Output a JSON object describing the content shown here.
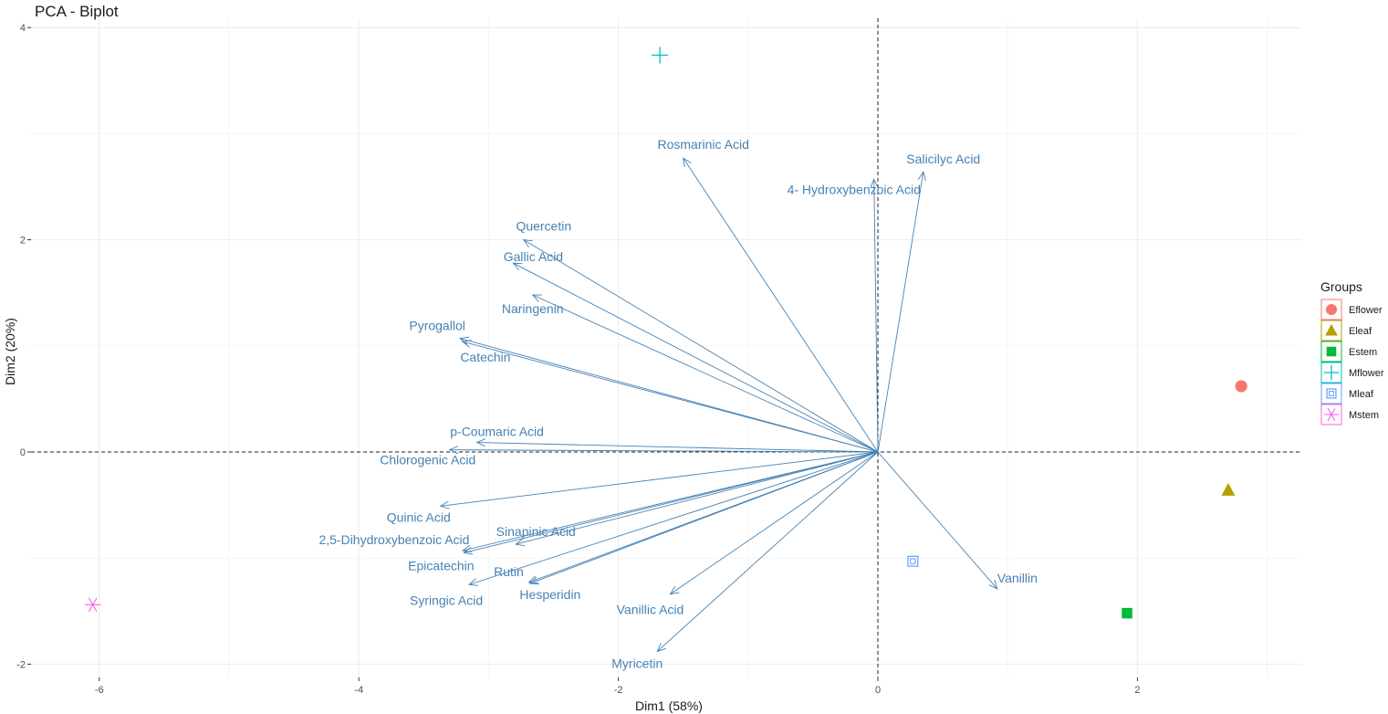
{
  "chart_data": {
    "type": "scatter",
    "subtype": "pca-biplot",
    "title": "PCA - Biplot",
    "xlabel": "Dim1 (58%)",
    "ylabel": "Dim2 (20%)",
    "xlim": [
      -6.6,
      3.25
    ],
    "ylim": [
      -2.2,
      4.1
    ],
    "x_ticks": [
      -6,
      -4,
      -2,
      0,
      2
    ],
    "y_ticks": [
      -2,
      0,
      2,
      4
    ],
    "grid": true,
    "reference_lines": {
      "x": 0,
      "y": 0,
      "style": "dashed"
    },
    "legend": {
      "title": "Groups",
      "position": "right"
    },
    "groups": [
      {
        "name": "Eflower",
        "shape": "circle",
        "color": "#F8766D",
        "x": 2.8,
        "y": 0.62
      },
      {
        "name": "Eleaf",
        "shape": "triangle",
        "color": "#B79F00",
        "x": 2.7,
        "y": -0.36
      },
      {
        "name": "Estem",
        "shape": "square",
        "color": "#00BA38",
        "x": 1.92,
        "y": -1.52
      },
      {
        "name": "Mflower",
        "shape": "cross",
        "color": "#00BFC4",
        "x": -1.68,
        "y": 3.74
      },
      {
        "name": "Mleaf",
        "shape": "boxed-square",
        "color": "#619CFF",
        "x": 0.27,
        "y": -1.03
      },
      {
        "name": "Mstem",
        "shape": "asterisk",
        "color": "#F564E3",
        "x": -6.05,
        "y": -1.44
      }
    ],
    "variables": [
      {
        "name": "Rosmarinic Acid",
        "x": -1.5,
        "y": 2.77
      },
      {
        "name": "4- Hydroxybenzoic Acid",
        "x": -0.03,
        "y": 2.57
      },
      {
        "name": "Salicilyc Acid",
        "x": 0.35,
        "y": 2.64
      },
      {
        "name": "Quercetin",
        "x": -2.73,
        "y": 2.0
      },
      {
        "name": "Gallic Acid",
        "x": -2.81,
        "y": 1.78
      },
      {
        "name": "Naringenin",
        "x": -2.66,
        "y": 1.48
      },
      {
        "name": "Pyrogallol",
        "x": -3.22,
        "y": 1.07
      },
      {
        "name": "Catechin",
        "x": -3.2,
        "y": 1.04
      },
      {
        "name": "p-Coumaric Acid",
        "x": -3.09,
        "y": 0.09
      },
      {
        "name": "Chlorogenic Acid",
        "x": -3.3,
        "y": 0.02
      },
      {
        "name": "Quinic Acid",
        "x": -3.37,
        "y": -0.51
      },
      {
        "name": "2,5-Dihydroxybenzoic Acid",
        "x": -3.2,
        "y": -0.93
      },
      {
        "name": "Sinapinic Acid",
        "x": -2.79,
        "y": -0.87
      },
      {
        "name": "Epicatechin",
        "x": -3.19,
        "y": -0.95
      },
      {
        "name": "Rutin",
        "x": -2.69,
        "y": -1.23
      },
      {
        "name": "Syringic Acid",
        "x": -3.15,
        "y": -1.25
      },
      {
        "name": "Hesperidin",
        "x": -2.68,
        "y": -1.24
      },
      {
        "name": "Vanillic Acid",
        "x": -1.6,
        "y": -1.34
      },
      {
        "name": "Myricetin",
        "x": -1.7,
        "y": -1.88
      },
      {
        "name": "Vanillin",
        "x": 0.92,
        "y": -1.29
      }
    ]
  }
}
